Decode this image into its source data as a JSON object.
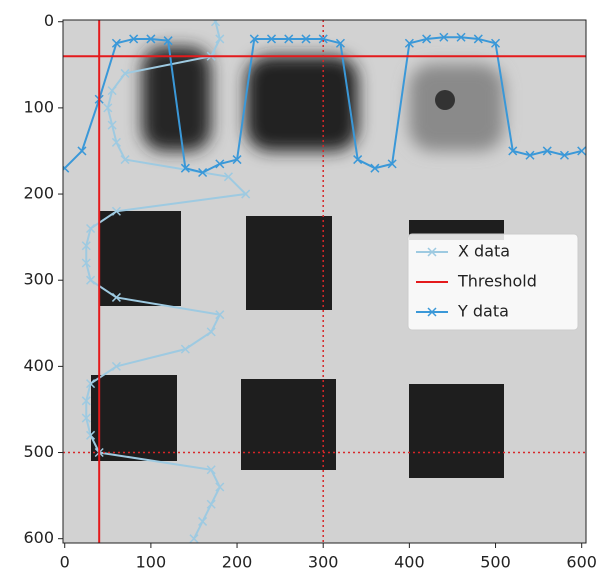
{
  "chart_data": {
    "type": "line",
    "xlim": [
      -2,
      605
    ],
    "ylim": [
      605,
      -2
    ],
    "xticks": [
      0,
      100,
      200,
      300,
      400,
      500,
      600
    ],
    "yticks": [
      0,
      100,
      200,
      300,
      400,
      500,
      600
    ],
    "series": [
      {
        "name": "X data",
        "color": "#9ecae1",
        "x": [
          175,
          180,
          170,
          70,
          55,
          50,
          55,
          60,
          70,
          190,
          210,
          60,
          30,
          25,
          25,
          30,
          60,
          180,
          170,
          140,
          60,
          30,
          25,
          25,
          30,
          40,
          170,
          180,
          170,
          160,
          150
        ],
        "y": [
          0,
          20,
          40,
          60,
          80,
          100,
          120,
          140,
          160,
          180,
          200,
          220,
          240,
          260,
          280,
          300,
          320,
          340,
          360,
          380,
          400,
          420,
          440,
          460,
          480,
          500,
          520,
          540,
          560,
          580,
          600
        ]
      },
      {
        "name": "Y data",
        "color": "#3a98d8",
        "x": [
          0,
          20,
          40,
          60,
          80,
          100,
          120,
          140,
          160,
          180,
          200,
          220,
          240,
          260,
          280,
          300,
          320,
          340,
          360,
          380,
          400,
          420,
          440,
          460,
          480,
          500,
          520,
          540,
          560,
          580,
          600
        ],
        "y": [
          170,
          150,
          90,
          25,
          20,
          20,
          22,
          170,
          175,
          165,
          160,
          20,
          20,
          20,
          20,
          20,
          25,
          160,
          170,
          165,
          25,
          20,
          18,
          18,
          20,
          25,
          150,
          155,
          150,
          155,
          150
        ]
      }
    ],
    "threshold": {
      "name": "Threshold",
      "color": "#e41a1c",
      "x": 40,
      "y": 40
    },
    "crosshair": {
      "x": 300,
      "y": 500,
      "color": "#d62728"
    }
  }
}
